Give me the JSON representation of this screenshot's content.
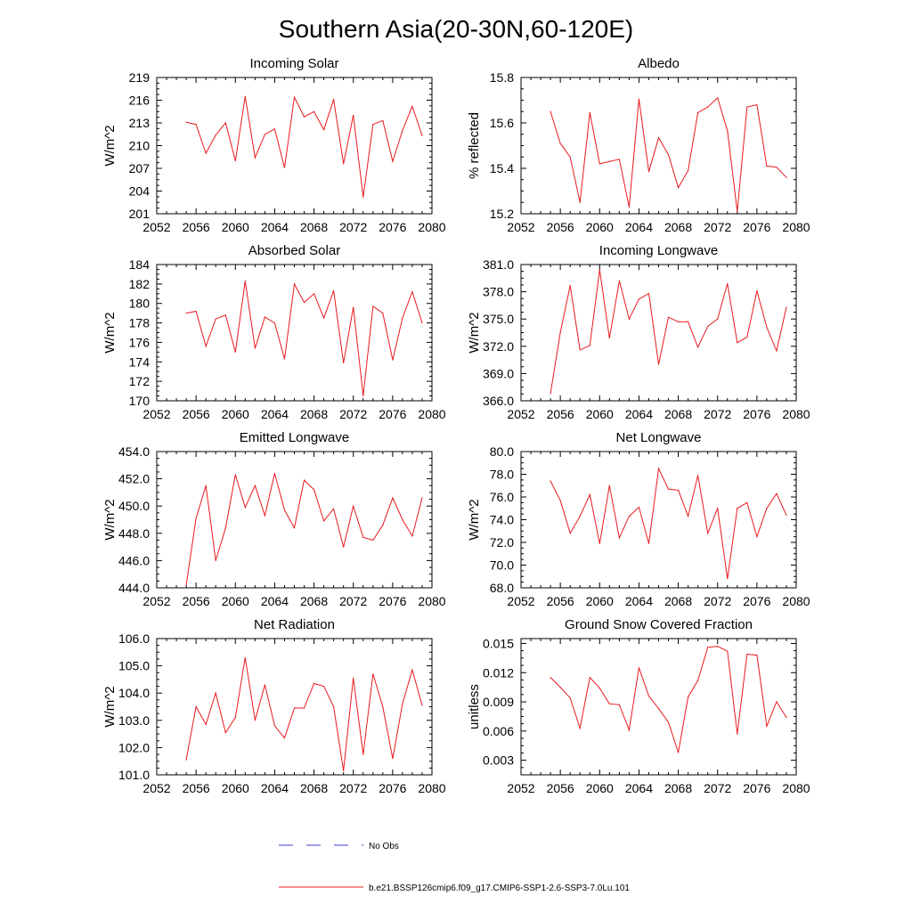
{
  "figure": {
    "title": "Southern Asia(20-30N,60-120E)",
    "legend": [
      {
        "label": "No Obs",
        "color": "#3b3bd6",
        "style": "dashed"
      },
      {
        "label": "b.e21.BSSP126cmip6.f09_g17.CMIP6-SSP1-2.6-SSP3-7.0Lu.101",
        "color": "#e8191f",
        "style": "solid"
      }
    ]
  },
  "chart_data": [
    {
      "type": "line",
      "title": "Incoming Solar",
      "ylabel": "W/m^2",
      "xlim": [
        2052,
        2080
      ],
      "ylim": [
        201,
        219
      ],
      "xticks": [
        "2052",
        "2056",
        "2060",
        "2064",
        "2068",
        "2072",
        "2076",
        "2080"
      ],
      "yticks": [
        "201",
        "204",
        "207",
        "210",
        "213",
        "216",
        "219"
      ],
      "series": [
        {
          "color": "#e8191f",
          "x": [
            2055,
            2056,
            2057,
            2058,
            2059,
            2060,
            2061,
            2062,
            2063,
            2064,
            2065,
            2066,
            2067,
            2068,
            2069,
            2070,
            2071,
            2072,
            2073,
            2074,
            2075,
            2076,
            2077,
            2078,
            2079
          ],
          "y": [
            213.1,
            212.8,
            209.0,
            211.4,
            213.0,
            208.0,
            216.5,
            208.4,
            211.5,
            212.2,
            207.1,
            216.4,
            213.8,
            214.5,
            212.1,
            216.1,
            207.6,
            214.0,
            203.2,
            212.8,
            213.3,
            207.9,
            212.0,
            215.2,
            211.3
          ]
        }
      ]
    },
    {
      "type": "line",
      "title": "Albedo",
      "ylabel": "% reflected",
      "xlim": [
        2052,
        2080
      ],
      "ylim": [
        15.2,
        15.8
      ],
      "xticks": [
        "2052",
        "2056",
        "2060",
        "2064",
        "2068",
        "2072",
        "2076",
        "2080"
      ],
      "yticks": [
        "15.2",
        "15.4",
        "15.6",
        "15.8"
      ],
      "series": [
        {
          "color": "#e8191f",
          "x": [
            2055,
            2056,
            2057,
            2058,
            2059,
            2060,
            2061,
            2062,
            2063,
            2064,
            2065,
            2066,
            2067,
            2068,
            2069,
            2070,
            2071,
            2072,
            2073,
            2074,
            2075,
            2076,
            2077,
            2078,
            2079
          ],
          "y": [
            15.65,
            15.51,
            15.45,
            15.25,
            15.645,
            15.42,
            15.43,
            15.44,
            15.23,
            15.705,
            15.385,
            15.535,
            15.46,
            15.315,
            15.39,
            15.645,
            15.67,
            15.71,
            15.565,
            15.21,
            15.67,
            15.68,
            15.41,
            15.405,
            15.36
          ]
        }
      ]
    },
    {
      "type": "line",
      "title": "Absorbed Solar",
      "ylabel": "W/m^2",
      "xlim": [
        2052,
        2080
      ],
      "ylim": [
        170,
        184
      ],
      "xticks": [
        "2052",
        "2056",
        "2060",
        "2064",
        "2068",
        "2072",
        "2076",
        "2080"
      ],
      "yticks": [
        "170",
        "172",
        "174",
        "176",
        "178",
        "180",
        "182",
        "184"
      ],
      "series": [
        {
          "color": "#e8191f",
          "x": [
            2055,
            2056,
            2057,
            2058,
            2059,
            2060,
            2061,
            2062,
            2063,
            2064,
            2065,
            2066,
            2067,
            2068,
            2069,
            2070,
            2071,
            2072,
            2073,
            2074,
            2075,
            2076,
            2077,
            2078,
            2079
          ],
          "y": [
            179.0,
            179.2,
            175.6,
            178.4,
            178.8,
            175.0,
            182.3,
            175.4,
            178.6,
            178.0,
            174.3,
            182.0,
            180.1,
            181.0,
            178.5,
            181.3,
            173.9,
            179.6,
            170.5,
            179.7,
            179.0,
            174.2,
            178.5,
            181.2,
            178.0
          ]
        }
      ]
    },
    {
      "type": "line",
      "title": "Incoming Longwave",
      "ylabel": "W/m^2",
      "xlim": [
        2052,
        2080
      ],
      "ylim": [
        366.0,
        381.0
      ],
      "xticks": [
        "2052",
        "2056",
        "2060",
        "2064",
        "2068",
        "2072",
        "2076",
        "2080"
      ],
      "yticks": [
        "366.0",
        "369.0",
        "372.0",
        "375.0",
        "378.0",
        "381.0"
      ],
      "series": [
        {
          "color": "#e8191f",
          "x": [
            2055,
            2056,
            2057,
            2058,
            2059,
            2060,
            2061,
            2062,
            2063,
            2064,
            2065,
            2066,
            2067,
            2068,
            2069,
            2070,
            2071,
            2072,
            2073,
            2074,
            2075,
            2076,
            2077,
            2078,
            2079
          ],
          "y": [
            366.8,
            373.5,
            378.7,
            371.6,
            372.1,
            380.4,
            372.9,
            379.2,
            375.0,
            377.2,
            377.8,
            370.0,
            375.2,
            374.7,
            374.7,
            371.9,
            374.2,
            375.0,
            378.9,
            372.4,
            373.0,
            378.1,
            374.1,
            371.5,
            376.3
          ]
        }
      ]
    },
    {
      "type": "line",
      "title": "Emitted Longwave",
      "ylabel": "W/m^2",
      "xlim": [
        2052,
        2080
      ],
      "ylim": [
        444.0,
        454.0
      ],
      "xticks": [
        "2052",
        "2056",
        "2060",
        "2064",
        "2068",
        "2072",
        "2076",
        "2080"
      ],
      "yticks": [
        "444.0",
        "446.0",
        "448.0",
        "450.0",
        "452.0",
        "454.0"
      ],
      "series": [
        {
          "color": "#e8191f",
          "x": [
            2055,
            2056,
            2057,
            2058,
            2059,
            2060,
            2061,
            2062,
            2063,
            2064,
            2065,
            2066,
            2067,
            2068,
            2069,
            2070,
            2071,
            2072,
            2073,
            2074,
            2075,
            2076,
            2077,
            2078,
            2079
          ],
          "y": [
            444.2,
            449.1,
            451.5,
            446.0,
            448.4,
            452.3,
            449.9,
            451.5,
            449.3,
            452.4,
            449.7,
            448.4,
            451.9,
            451.2,
            448.9,
            449.8,
            447.0,
            450.0,
            447.7,
            447.5,
            448.6,
            450.6,
            449.0,
            447.8,
            450.6
          ]
        }
      ]
    },
    {
      "type": "line",
      "title": "Net Longwave",
      "ylabel": "W/m^2",
      "xlim": [
        2052,
        2080
      ],
      "ylim": [
        68.0,
        80.0
      ],
      "xticks": [
        "2052",
        "2056",
        "2060",
        "2064",
        "2068",
        "2072",
        "2076",
        "2080"
      ],
      "yticks": [
        "68.0",
        "70.0",
        "72.0",
        "74.0",
        "76.0",
        "78.0",
        "80.0"
      ],
      "series": [
        {
          "color": "#e8191f",
          "x": [
            2055,
            2056,
            2057,
            2058,
            2059,
            2060,
            2061,
            2062,
            2063,
            2064,
            2065,
            2066,
            2067,
            2068,
            2069,
            2070,
            2071,
            2072,
            2073,
            2074,
            2075,
            2076,
            2077,
            2078,
            2079
          ],
          "y": [
            77.4,
            75.7,
            72.8,
            74.3,
            76.2,
            71.9,
            77.0,
            72.4,
            74.3,
            75.1,
            71.9,
            78.5,
            76.7,
            76.6,
            74.3,
            77.9,
            72.8,
            75.0,
            68.8,
            75.0,
            75.5,
            72.5,
            75.0,
            76.3,
            74.4
          ]
        }
      ]
    },
    {
      "type": "line",
      "title": "Net Radiation",
      "ylabel": "W/m^2",
      "xlim": [
        2052,
        2080
      ],
      "ylim": [
        101.0,
        106.0
      ],
      "xticks": [
        "2052",
        "2056",
        "2060",
        "2064",
        "2068",
        "2072",
        "2076",
        "2080"
      ],
      "yticks": [
        "101.0",
        "102.0",
        "103.0",
        "104.0",
        "105.0",
        "106.0"
      ],
      "series": [
        {
          "color": "#e8191f",
          "x": [
            2055,
            2056,
            2057,
            2058,
            2059,
            2060,
            2061,
            2062,
            2063,
            2064,
            2065,
            2066,
            2067,
            2068,
            2069,
            2070,
            2071,
            2072,
            2073,
            2074,
            2075,
            2076,
            2077,
            2078,
            2079
          ],
          "y": [
            101.55,
            103.5,
            102.85,
            104.0,
            102.55,
            103.1,
            105.3,
            103.0,
            104.3,
            102.8,
            102.35,
            103.45,
            103.45,
            104.35,
            104.25,
            103.5,
            101.15,
            104.55,
            101.75,
            104.7,
            103.5,
            101.6,
            103.6,
            104.85,
            103.55
          ]
        }
      ]
    },
    {
      "type": "line",
      "title": "Ground Snow Covered Fraction",
      "ylabel": "unitless",
      "xlim": [
        2052,
        2080
      ],
      "ylim": [
        0.0015,
        0.0155
      ],
      "xticks": [
        "2052",
        "2056",
        "2060",
        "2064",
        "2068",
        "2072",
        "2076",
        "2080"
      ],
      "yticks": [
        "0.003",
        "0.006",
        "0.009",
        "0.012",
        "0.015"
      ],
      "series": [
        {
          "color": "#e8191f",
          "x": [
            2055,
            2056,
            2057,
            2058,
            2059,
            2060,
            2061,
            2062,
            2063,
            2064,
            2065,
            2066,
            2067,
            2068,
            2069,
            2070,
            2071,
            2072,
            2073,
            2074,
            2075,
            2076,
            2077,
            2078,
            2079
          ],
          "y": [
            0.0115,
            0.0105,
            0.0094,
            0.0063,
            0.0115,
            0.0104,
            0.0088,
            0.0087,
            0.0061,
            0.0125,
            0.0096,
            0.0083,
            0.0069,
            0.0038,
            0.0095,
            0.0112,
            0.0146,
            0.0147,
            0.0142,
            0.0057,
            0.0139,
            0.0138,
            0.0065,
            0.009,
            0.0074
          ]
        }
      ]
    }
  ]
}
